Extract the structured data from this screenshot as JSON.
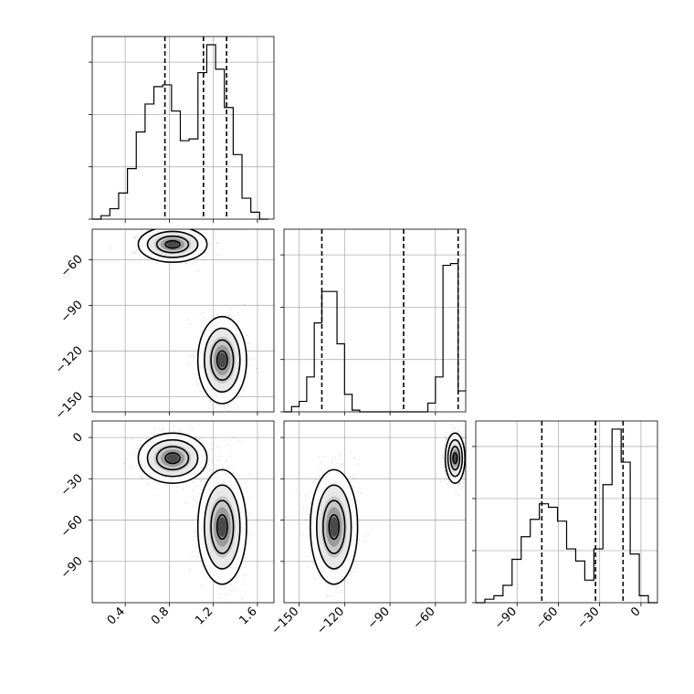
{
  "chart_data": {
    "type": "corner",
    "title": "",
    "grid": true,
    "parameters": [
      {
        "range": [
          0.1,
          1.75
        ],
        "ticks": [
          0.4,
          0.8,
          1.2,
          1.6
        ],
        "tick_labels": [
          "0.4",
          "0.8",
          "1.2",
          "1.6"
        ]
      },
      {
        "range": [
          -160,
          -40
        ],
        "ticks": [
          -150,
          -120,
          -90,
          -60
        ],
        "tick_labels": [
          "−150",
          "−120",
          "−90",
          "−60"
        ]
      },
      {
        "range": [
          -120,
          12
        ],
        "ticks": [
          -90,
          -60,
          -30,
          0
        ],
        "tick_labels": [
          "−90",
          "−60",
          "−30",
          "0"
        ]
      }
    ],
    "histograms": [
      {
        "param": 0,
        "bin_edges": [
          0.1,
          0.18,
          0.26,
          0.34,
          0.42,
          0.5,
          0.58,
          0.66,
          0.74,
          0.82,
          0.9,
          0.98,
          1.06,
          1.14,
          1.22,
          1.3,
          1.38,
          1.46,
          1.54,
          1.62,
          1.7
        ],
        "counts": [
          0,
          0.02,
          0.06,
          0.15,
          0.29,
          0.5,
          0.66,
          0.76,
          0.77,
          0.62,
          0.45,
          0.46,
          0.84,
          1.0,
          0.86,
          0.64,
          0.37,
          0.12,
          0.04,
          0.0
        ],
        "quantiles": [
          0.76,
          1.11,
          1.32
        ]
      },
      {
        "param": 1,
        "bin_edges": [
          -160,
          -155,
          -150,
          -145,
          -140,
          -135,
          -130,
          -125,
          -120,
          -115,
          -110,
          -105,
          -100,
          -95,
          -90,
          -85,
          -80,
          -75,
          -70,
          -65,
          -60,
          -55,
          -50,
          -45,
          -40
        ],
        "counts": [
          0,
          0.03,
          0.06,
          0.2,
          0.51,
          0.69,
          0.69,
          0.39,
          0.1,
          0.01,
          0,
          0,
          0,
          0,
          0,
          0,
          0,
          0,
          0,
          0.05,
          0.2,
          0.84,
          0.85,
          0.12
        ],
        "quantiles": [
          -135,
          -81,
          -45
        ]
      },
      {
        "param": 2,
        "bin_edges": [
          -120,
          -113.4,
          -106.8,
          -100.2,
          -93.6,
          -87,
          -80.4,
          -73.8,
          -67.2,
          -60.6,
          -54,
          -47.4,
          -40.8,
          -34.2,
          -27.6,
          -21,
          -14.4,
          -7.8,
          -1.2,
          5.4,
          12
        ],
        "counts": [
          0,
          0.02,
          0.04,
          0.1,
          0.25,
          0.38,
          0.48,
          0.57,
          0.55,
          0.47,
          0.31,
          0.24,
          0.13,
          0.31,
          0.68,
          1.0,
          0.81,
          0.28,
          0.04,
          0
        ],
        "quantiles": [
          -72,
          -33,
          -13
        ]
      }
    ],
    "joint": [
      {
        "x_param": 0,
        "y_param": 1,
        "modes": [
          {
            "x": 0.83,
            "y": -50,
            "sx": 0.12,
            "sy": 4.5
          },
          {
            "x": 1.28,
            "y": -126,
            "sx": 0.085,
            "sy": 11
          }
        ]
      },
      {
        "x_param": 0,
        "y_param": 2,
        "modes": [
          {
            "x": 0.83,
            "y": -15,
            "sx": 0.12,
            "sy": 7
          },
          {
            "x": 1.28,
            "y": -65,
            "sx": 0.085,
            "sy": 16
          }
        ]
      },
      {
        "x_param": 1,
        "y_param": 2,
        "modes": [
          {
            "x": -127,
            "y": -65,
            "sx": 6,
            "sy": 16
          },
          {
            "x": -47,
            "y": -15,
            "sx": 2.5,
            "sy": 7
          }
        ]
      }
    ]
  }
}
